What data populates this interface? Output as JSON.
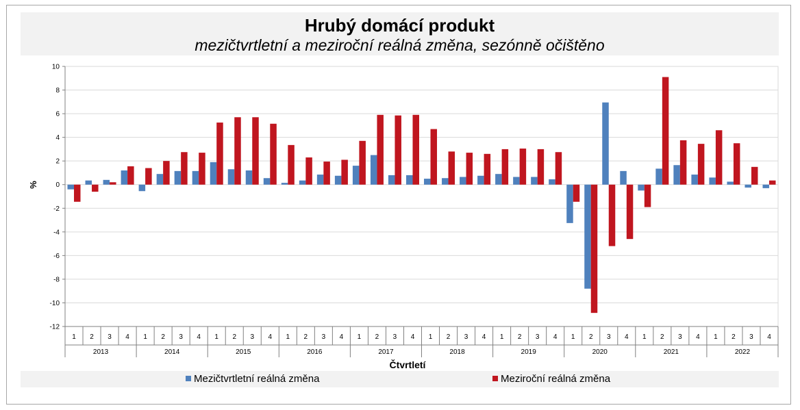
{
  "title": "Hrubý domácí produkt",
  "subtitle": "mezičtvrtletní a meziroční reálná změna, sezónně očištěno",
  "colors": {
    "series1": "#4f81bd",
    "series2": "#c0161f",
    "grid": "#d9d9d9",
    "axis": "#808080"
  },
  "chart_data": {
    "type": "bar",
    "xlabel": "Čtvrtletí",
    "ylabel": "%",
    "ylim": [
      -12,
      10
    ],
    "yticks": [
      10,
      8,
      6,
      4,
      2,
      0,
      -2,
      -4,
      -6,
      -8,
      -10,
      -12
    ],
    "grid": true,
    "legend_position": "bottom",
    "years": [
      "2013",
      "2014",
      "2015",
      "2016",
      "2017",
      "2018",
      "2019",
      "2020",
      "2021",
      "2022"
    ],
    "quarter_labels": [
      "1",
      "2",
      "3",
      "4"
    ],
    "series": [
      {
        "name": "Mezičtvrtletní reálná změna",
        "color": "#4f81bd",
        "values": [
          -0.4,
          0.35,
          0.4,
          1.2,
          -0.55,
          0.9,
          1.15,
          1.15,
          1.9,
          1.3,
          1.2,
          0.55,
          0.15,
          0.35,
          0.85,
          0.75,
          1.6,
          2.5,
          0.8,
          0.8,
          0.5,
          0.55,
          0.65,
          0.75,
          0.9,
          0.65,
          0.65,
          0.45,
          -3.25,
          -8.8,
          6.95,
          1.15,
          -0.5,
          1.35,
          1.65,
          0.85,
          0.6,
          0.25,
          -0.25,
          -0.3
        ]
      },
      {
        "name": "Meziroční reálná změna",
        "color": "#c0161f",
        "values": [
          -1.45,
          -0.6,
          0.2,
          1.55,
          1.4,
          2.0,
          2.75,
          2.7,
          5.25,
          5.7,
          5.7,
          5.15,
          3.35,
          2.3,
          1.95,
          2.1,
          3.7,
          5.9,
          5.85,
          5.9,
          4.7,
          2.8,
          2.7,
          2.6,
          3.0,
          3.05,
          3.0,
          2.75,
          -1.45,
          -10.85,
          -5.2,
          -4.6,
          -1.9,
          9.1,
          3.75,
          3.45,
          4.6,
          3.5,
          1.5,
          0.35
        ]
      }
    ]
  }
}
